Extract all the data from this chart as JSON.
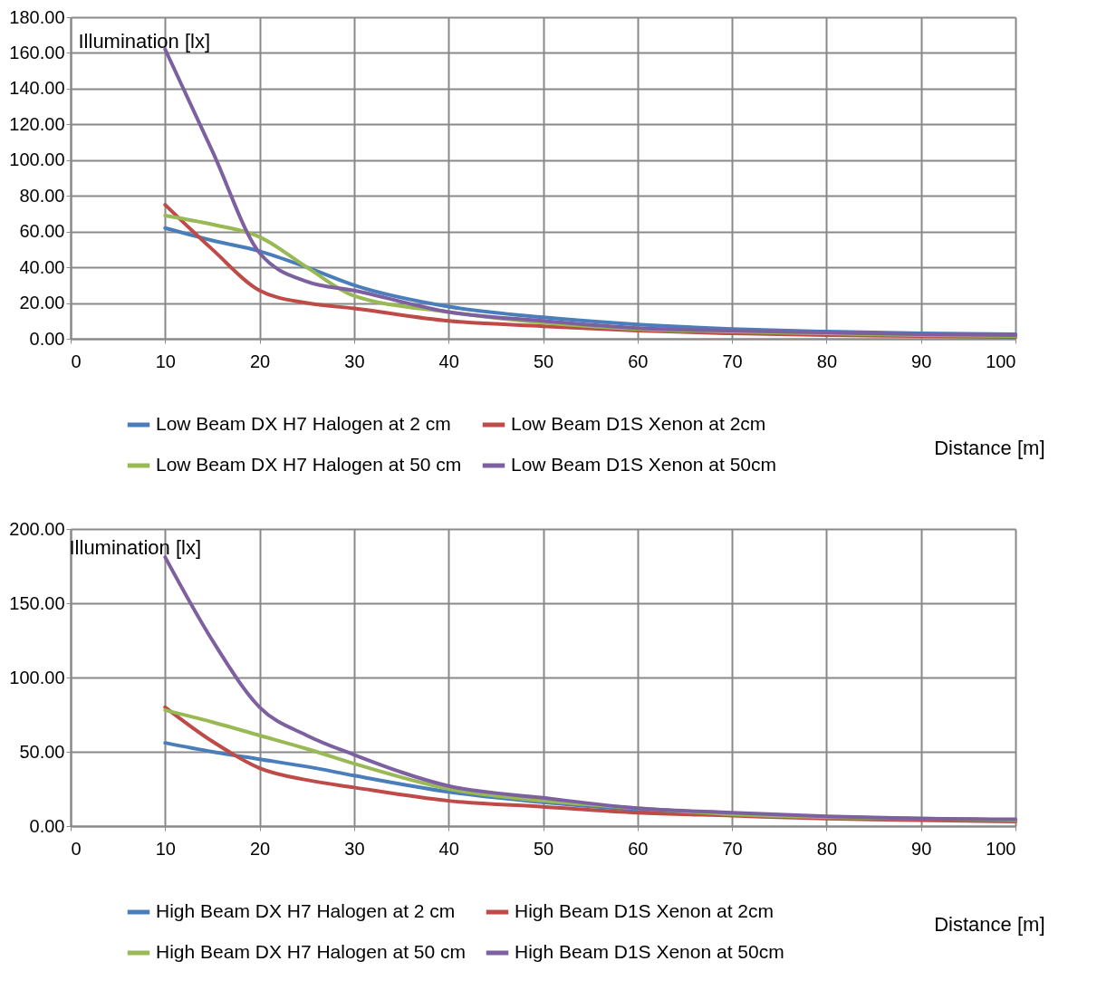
{
  "chart_data": [
    {
      "type": "line",
      "xlabel": "Distance [m]",
      "ylabel": "Illumination [lx]",
      "x": [
        10,
        15,
        20,
        25,
        30,
        40,
        50,
        60,
        70,
        80,
        90,
        100
      ],
      "series": [
        {
          "name": "Low Beam DX H7 Halogen at 2 cm",
          "color": "#4a7ebb",
          "values": [
            62,
            55,
            49,
            40,
            30,
            18,
            12,
            8,
            5.5,
            4,
            3,
            2.5
          ]
        },
        {
          "name": "Low Beam D1S Xenon  at 2cm",
          "color": "#be4b48",
          "values": [
            75,
            50,
            27,
            20,
            17,
            10,
            7,
            4.5,
            3,
            2,
            1.5,
            1
          ]
        },
        {
          "name": "Low Beam DX H7 Halogen at  50 cm",
          "color": "#98b954",
          "values": [
            69,
            64,
            57,
            40,
            24,
            15,
            9,
            5.5,
            4,
            3,
            2,
            1.5
          ]
        },
        {
          "name": "Low Beam D1S Xenon  at 50cm",
          "color": "#7d60a0",
          "values": [
            162,
            105,
            48,
            32,
            27,
            15,
            10,
            6,
            4.5,
            3.5,
            2.5,
            2
          ]
        }
      ],
      "xlim": [
        0,
        100
      ],
      "xticks": [
        0,
        10,
        20,
        30,
        40,
        50,
        60,
        70,
        80,
        90,
        100
      ],
      "ylim": [
        0,
        180
      ],
      "yticks": [
        {
          "value": 0,
          "label": "0.00"
        },
        {
          "value": 20,
          "label": "20.00"
        },
        {
          "value": 40,
          "label": "40.00"
        },
        {
          "value": 60,
          "label": "60.00"
        },
        {
          "value": 80,
          "label": "80.00"
        },
        {
          "value": 100,
          "label": "100.00"
        },
        {
          "value": 120,
          "label": "120.00"
        },
        {
          "value": 140,
          "label": "140.00"
        },
        {
          "value": 160,
          "label": "160.00"
        },
        {
          "value": 180,
          "label": "180.00"
        }
      ],
      "grid": true,
      "legend": "bottom",
      "marker": "none",
      "line_style": "solid"
    },
    {
      "type": "line",
      "xlabel": "Distance [m]",
      "ylabel": "Illumination [lx]",
      "x": [
        10,
        15,
        20,
        25,
        30,
        40,
        50,
        60,
        70,
        80,
        90,
        100
      ],
      "series": [
        {
          "name": "High Beam DX H7 Halogen at 2 cm",
          "color": "#4a7ebb",
          "values": [
            56,
            50,
            45,
            40,
            34,
            23,
            16,
            11,
            8,
            6,
            5,
            4
          ]
        },
        {
          "name": "High Beam D1S Xenon  at 2cm",
          "color": "#be4b48",
          "values": [
            80,
            57,
            39,
            31,
            26,
            17,
            13,
            9,
            7,
            5,
            4,
            3
          ]
        },
        {
          "name": "High Beam DX H7 Halogen at  50 cm",
          "color": "#98b954",
          "values": [
            78,
            70,
            61,
            52,
            42,
            25,
            17,
            12,
            8,
            6,
            5,
            4
          ]
        },
        {
          "name": "High Beam D1S Xenon  at 50cm",
          "color": "#7d60a0",
          "values": [
            181,
            125,
            80,
            61,
            48,
            27,
            19,
            12,
            9,
            6.5,
            5,
            4.5
          ]
        }
      ],
      "xlim": [
        0,
        100
      ],
      "xticks": [
        0,
        10,
        20,
        30,
        40,
        50,
        60,
        70,
        80,
        90,
        100
      ],
      "ylim": [
        0,
        200
      ],
      "yticks": [
        {
          "value": 0,
          "label": "0.00"
        },
        {
          "value": 50,
          "label": "50.00"
        },
        {
          "value": 100,
          "label": "100.00"
        },
        {
          "value": 150,
          "label": "150.00"
        },
        {
          "value": 200,
          "label": "200.00"
        }
      ],
      "grid": true,
      "legend": "bottom",
      "marker": "none",
      "line_style": "solid"
    }
  ]
}
